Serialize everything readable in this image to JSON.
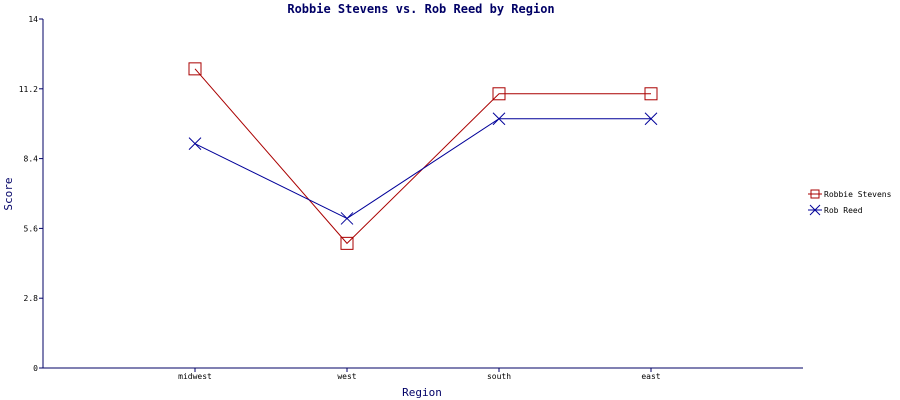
{
  "chart_data": {
    "type": "line",
    "title": "Robbie Stevens vs. Rob Reed by Region",
    "xlabel": "Region",
    "ylabel": "Score",
    "categories": [
      "midwest",
      "west",
      "south",
      "east"
    ],
    "ylim": [
      0,
      14
    ],
    "yticks": [
      "0",
      "2.8",
      "5.6",
      "8.4",
      "11.2",
      "14"
    ],
    "grid": false,
    "legend_position": "right",
    "series": [
      {
        "name": "Robbie Stevens",
        "values": [
          12.0,
          5.0,
          11.0,
          11.0
        ],
        "color": "#aa0000",
        "marker": "square"
      },
      {
        "name": "Rob Reed",
        "values": [
          9.0,
          6.0,
          10.0,
          10.0
        ],
        "color": "#000099",
        "marker": "x"
      }
    ],
    "axis_color": "#000066"
  }
}
